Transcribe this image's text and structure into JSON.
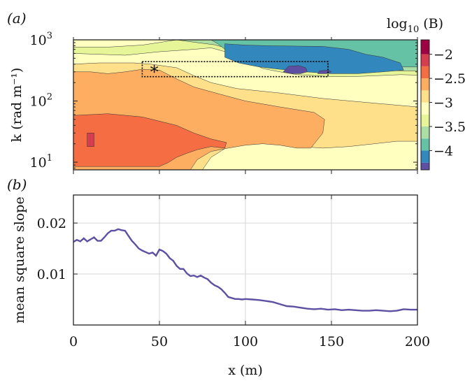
{
  "chart_data": [
    {
      "type": "heatmap",
      "panel_label": "(a)",
      "ylabel": "k (rad m⁻¹)",
      "yscale": "log",
      "ylim": [
        7.5,
        1000
      ],
      "y_ticks": [
        {
          "label": "10",
          "exp": "1",
          "value": 10
        },
        {
          "label": "10",
          "exp": "2",
          "value": 100
        },
        {
          "label": "10",
          "exp": "3",
          "value": 1000
        }
      ],
      "xlim": [
        0,
        200
      ],
      "x_ticks": [
        0,
        50,
        100,
        150,
        200
      ],
      "colorbar": {
        "title": "log",
        "title_sub": "10",
        "title_suffix": " (B)",
        "range": [
          -4.4,
          -1.7
        ],
        "ticks": [
          {
            "value": -2,
            "label": "−2"
          },
          {
            "value": -2.5,
            "label": "−2.5"
          },
          {
            "value": -3,
            "label": "−3"
          },
          {
            "value": -3.5,
            "label": "−3.5"
          },
          {
            "value": -4,
            "label": "−4"
          }
        ],
        "levels": [
          {
            "from": -4.4,
            "to": -4.25,
            "color": "#5e4fa2"
          },
          {
            "from": -4.25,
            "to": -4.0,
            "color": "#3288bd"
          },
          {
            "from": -4.0,
            "to": -3.75,
            "color": "#66c2a5"
          },
          {
            "from": -3.75,
            "to": -3.5,
            "color": "#abdda4"
          },
          {
            "from": -3.5,
            "to": -3.25,
            "color": "#e6f598"
          },
          {
            "from": -3.25,
            "to": -3.0,
            "color": "#ffffbf"
          },
          {
            "from": -3.0,
            "to": -2.75,
            "color": "#fee08b"
          },
          {
            "from": -2.75,
            "to": -2.5,
            "color": "#fdae61"
          },
          {
            "from": -2.5,
            "to": -2.25,
            "color": "#f46d43"
          },
          {
            "from": -2.25,
            "to": -2.0,
            "color": "#d53e4f"
          },
          {
            "from": -2.0,
            "to": -1.7,
            "color": "#9e0142"
          }
        ]
      },
      "contour_regions": [
        {
          "color": "#ffffbf",
          "polygon": [
            [
              0,
              7.5
            ],
            [
              200,
              7.5
            ],
            [
              200,
              1000
            ],
            [
              0,
              1000
            ]
          ]
        },
        {
          "color": "#fee08b",
          "polygon": [
            [
              0,
              7.5
            ],
            [
              75,
              7.5
            ],
            [
              80,
              12
            ],
            [
              90,
              18
            ],
            [
              100,
              22
            ],
            [
              110,
              24
            ],
            [
              120,
              22
            ],
            [
              132,
              18
            ],
            [
              145,
              17
            ],
            [
              160,
              18
            ],
            [
              175,
              20
            ],
            [
              188,
              22
            ],
            [
              200,
              22
            ],
            [
              200,
              80
            ],
            [
              170,
              95
            ],
            [
              145,
              110
            ],
            [
              120,
              135
            ],
            [
              95,
              160
            ],
            [
              80,
              200
            ],
            [
              70,
              260
            ],
            [
              60,
              350
            ],
            [
              45,
              400
            ],
            [
              35,
              420
            ],
            [
              15,
              420
            ],
            [
              0,
              400
            ]
          ]
        },
        {
          "color": "#fdae61",
          "polygon": [
            [
              0,
              7.5
            ],
            [
              68,
              7.5
            ],
            [
              72,
              11
            ],
            [
              80,
              15
            ],
            [
              90,
              17
            ],
            [
              100,
              19
            ],
            [
              110,
              20
            ],
            [
              120,
              19
            ],
            [
              130,
              17
            ],
            [
              138,
              17
            ],
            [
              140,
              20
            ],
            [
              145,
              30
            ],
            [
              146,
              50
            ],
            [
              140,
              65
            ],
            [
              120,
              80
            ],
            [
              100,
              100
            ],
            [
              85,
              130
            ],
            [
              70,
              170
            ],
            [
              60,
              230
            ],
            [
              50,
              320
            ],
            [
              40,
              330
            ],
            [
              30,
              300
            ],
            [
              20,
              280
            ],
            [
              10,
              300
            ],
            [
              0,
              300
            ]
          ]
        },
        {
          "color": "#f46d43",
          "polygon": [
            [
              0,
              8.5
            ],
            [
              50,
              8.5
            ],
            [
              55,
              9.8
            ],
            [
              60,
              12
            ],
            [
              66,
              14
            ],
            [
              72,
              16
            ],
            [
              80,
              18
            ],
            [
              88,
              17
            ],
            [
              89,
              21
            ],
            [
              80,
              24
            ],
            [
              70,
              30
            ],
            [
              60,
              40
            ],
            [
              40,
              55
            ],
            [
              20,
              62
            ],
            [
              0,
              58
            ]
          ]
        },
        {
          "color": "#d53e4f",
          "polygon": [
            [
              8,
              18
            ],
            [
              12,
              18
            ],
            [
              12,
              30
            ],
            [
              8,
              30
            ]
          ]
        },
        {
          "color": "#e6f598",
          "polygon": [
            [
              0,
              600
            ],
            [
              30,
              560
            ],
            [
              50,
              640
            ],
            [
              70,
              700
            ],
            [
              80,
              740
            ],
            [
              90,
              620
            ],
            [
              100,
              470
            ],
            [
              110,
              340
            ],
            [
              120,
              300
            ],
            [
              130,
              270
            ],
            [
              140,
              260
            ],
            [
              150,
              250
            ],
            [
              160,
              250
            ],
            [
              170,
              255
            ],
            [
              180,
              262
            ],
            [
              190,
              270
            ],
            [
              200,
              265
            ],
            [
              200,
              1000
            ],
            [
              60,
              1000
            ],
            [
              40,
              820
            ],
            [
              20,
              760
            ],
            [
              0,
              760
            ]
          ]
        },
        {
          "color": "#abdda4",
          "polygon": [
            [
              60,
              1000
            ],
            [
              72,
              900
            ],
            [
              82,
              830
            ],
            [
              90,
              720
            ],
            [
              100,
              580
            ],
            [
              110,
              440
            ],
            [
              120,
              390
            ],
            [
              135,
              350
            ],
            [
              150,
              320
            ],
            [
              165,
              310
            ],
            [
              180,
              315
            ],
            [
              200,
              310
            ],
            [
              200,
              1000
            ]
          ]
        },
        {
          "color": "#66c2a5",
          "polygon": [
            [
              80,
              1000
            ],
            [
              84,
              860
            ],
            [
              88,
              700
            ],
            [
              95,
              560
            ],
            [
              105,
              470
            ],
            [
              118,
              430
            ],
            [
              135,
              400
            ],
            [
              150,
              380
            ],
            [
              165,
              360
            ],
            [
              180,
              360
            ],
            [
              200,
              360
            ],
            [
              200,
              1000
            ]
          ]
        },
        {
          "color": "#3288bd",
          "polygon": [
            [
              88,
              860
            ],
            [
              100,
              820
            ],
            [
              115,
              800
            ],
            [
              130,
              790
            ],
            [
              145,
              780
            ],
            [
              160,
              700
            ],
            [
              170,
              580
            ],
            [
              180,
              520
            ],
            [
              190,
              420
            ],
            [
              192,
              320
            ],
            [
              180,
              300
            ],
            [
              165,
              280
            ],
            [
              150,
              280
            ],
            [
              135,
              300
            ],
            [
              120,
              330
            ],
            [
              108,
              360
            ],
            [
              96,
              420
            ],
            [
              88,
              520
            ]
          ]
        },
        {
          "color": "#5e4fa2",
          "polygon": [
            [
              122,
              300
            ],
            [
              127,
              280
            ],
            [
              132,
              280
            ],
            [
              136,
              300
            ],
            [
              135,
              350
            ],
            [
              131,
              380
            ],
            [
              125,
              370
            ]
          ]
        },
        {
          "color": "#5e4fa2",
          "polygon": [
            [
              142,
              280
            ],
            [
              147,
              280
            ],
            [
              150,
              300
            ],
            [
              148,
              320
            ],
            [
              143,
              310
            ]
          ]
        }
      ],
      "selection_box": {
        "x": [
          40,
          148
        ],
        "y": [
          250,
          440
        ]
      },
      "marker": {
        "text": "*",
        "x": 47,
        "y": 330
      }
    },
    {
      "type": "line",
      "panel_label": "(b)",
      "xlabel": "x (m)",
      "ylabel": "mean square slope",
      "xlim": [
        0,
        200
      ],
      "ylim": [
        0,
        0.0255
      ],
      "x_ticks": [
        0,
        50,
        100,
        150,
        200
      ],
      "y_ticks": [
        {
          "value": 0.01,
          "label": "0.01"
        },
        {
          "value": 0.02,
          "label": "0.02"
        }
      ],
      "grid": true,
      "line_color": "#5e4fa2",
      "x": [
        0,
        2,
        4,
        6,
        8,
        10,
        12,
        14,
        16,
        18,
        20,
        22,
        24,
        26,
        28,
        30,
        32,
        34,
        36,
        38,
        40,
        42,
        44,
        46,
        48,
        50,
        52,
        54,
        56,
        58,
        60,
        62,
        64,
        66,
        68,
        70,
        72,
        74,
        76,
        78,
        80,
        82,
        84,
        86,
        88,
        90,
        92,
        94,
        96,
        98,
        100,
        104,
        108,
        112,
        116,
        120,
        124,
        128,
        132,
        136,
        140,
        144,
        148,
        152,
        156,
        160,
        164,
        168,
        172,
        176,
        180,
        184,
        188,
        192,
        196,
        200
      ],
      "y": [
        0.0163,
        0.0167,
        0.0164,
        0.017,
        0.0164,
        0.0168,
        0.0172,
        0.0165,
        0.0165,
        0.0172,
        0.018,
        0.0185,
        0.0185,
        0.0188,
        0.0186,
        0.0185,
        0.0175,
        0.0165,
        0.0158,
        0.015,
        0.0146,
        0.0143,
        0.014,
        0.0142,
        0.0136,
        0.0148,
        0.0145,
        0.014,
        0.0131,
        0.0126,
        0.0116,
        0.011,
        0.011,
        0.0101,
        0.0096,
        0.0097,
        0.0094,
        0.0097,
        0.0093,
        0.009,
        0.0083,
        0.0078,
        0.0075,
        0.007,
        0.0063,
        0.0055,
        0.0053,
        0.0051,
        0.0051,
        0.005,
        0.0051,
        0.005,
        0.0049,
        0.0047,
        0.0045,
        0.0041,
        0.0037,
        0.0036,
        0.0034,
        0.0032,
        0.0031,
        0.0032,
        0.003,
        0.0031,
        0.0029,
        0.003,
        0.0029,
        0.0028,
        0.0028,
        0.0029,
        0.0028,
        0.0027,
        0.0028,
        0.0031,
        0.003,
        0.003
      ]
    }
  ]
}
